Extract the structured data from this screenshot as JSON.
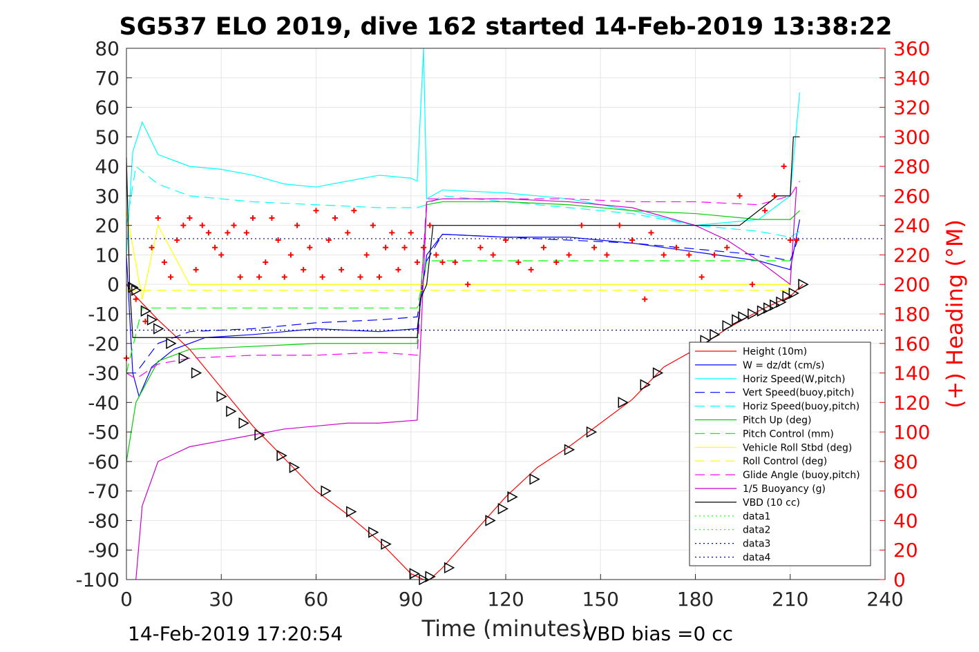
{
  "chart_data": {
    "type": "line",
    "title": "SG537 ELO 2019, dive 162 started 14-Feb-2019 13:38:22",
    "xlabel": "Time (minutes)",
    "ylabel_left": "",
    "ylabel_right": "(+) Heading (°M)",
    "xlim": [
      0,
      240
    ],
    "ylim_left": [
      -100,
      80
    ],
    "ylim_right": [
      0,
      360
    ],
    "xticks": [
      "0",
      "30",
      "60",
      "90",
      "120",
      "150",
      "180",
      "210",
      "240"
    ],
    "yticks_left": [
      "80",
      "70",
      "60",
      "50",
      "40",
      "30",
      "20",
      "10",
      "0",
      "-10",
      "-20",
      "-30",
      "-40",
      "-50",
      "-60",
      "-70",
      "-80",
      "-90",
      "-100"
    ],
    "yticks_right": [
      "360",
      "340",
      "320",
      "300",
      "280",
      "260",
      "240",
      "220",
      "200",
      "180",
      "160",
      "140",
      "120",
      "100",
      "80",
      "60",
      "40",
      "20",
      "0"
    ],
    "grid": true,
    "legend_position": "lower-right",
    "footer_left": "14-Feb-2019 17:20:54",
    "footer_right": "VBD bias =0 cc",
    "series": [
      {
        "name": "Height (10m)",
        "color": "#ff0000",
        "style": "solid",
        "x": [
          0,
          2,
          10,
          20,
          30,
          40,
          50,
          60,
          70,
          80,
          90,
          94,
          96,
          100,
          110,
          120,
          130,
          140,
          150,
          160,
          170,
          180,
          190,
          200,
          210,
          214
        ],
        "y": [
          0,
          -3,
          -12,
          -22,
          -35,
          -48,
          -59,
          -70,
          -78,
          -87,
          -98,
          -100,
          -100,
          -96,
          -84,
          -72,
          -62,
          -55,
          -47,
          -39,
          -28,
          -22,
          -15,
          -9,
          -4,
          0
        ]
      },
      {
        "name": "W = dz/dt (cm/s)",
        "color": "#0000ff",
        "style": "solid",
        "x": [
          0,
          2,
          4,
          8,
          15,
          25,
          40,
          60,
          80,
          92,
          95,
          100,
          120,
          140,
          160,
          180,
          200,
          210,
          213
        ],
        "y": [
          10,
          -30,
          -38,
          -28,
          -22,
          -18,
          -17,
          -15,
          -16,
          -15,
          10,
          17,
          16,
          16,
          14,
          11,
          8,
          5,
          22
        ]
      },
      {
        "name": "Horiz Speed(W,pitch)",
        "color": "#00ffff",
        "style": "solid",
        "x": [
          0,
          2,
          5,
          10,
          20,
          30,
          40,
          50,
          60,
          70,
          80,
          90,
          92,
          94,
          95,
          100,
          120,
          140,
          160,
          180,
          190,
          200,
          210,
          213
        ],
        "y": [
          10,
          45,
          55,
          44,
          40,
          39,
          37,
          34,
          33,
          35,
          37,
          36,
          35,
          80,
          29,
          32,
          31,
          29,
          25,
          20,
          21,
          22,
          30,
          65
        ]
      },
      {
        "name": "Vert Speed(buoy,pitch)",
        "color": "#0000ff",
        "style": "dashed",
        "x": [
          0,
          3,
          10,
          20,
          40,
          60,
          80,
          92,
          95,
          100,
          120,
          140,
          160,
          180,
          200,
          210,
          213
        ],
        "y": [
          -30,
          -30,
          -20,
          -16,
          -15,
          -13,
          -12,
          -11,
          8,
          17,
          16,
          15,
          14,
          12,
          10,
          8,
          17
        ]
      },
      {
        "name": "Horiz Speed(buoy,pitch)",
        "color": "#00ffff",
        "style": "dashed",
        "x": [
          0,
          3,
          10,
          20,
          40,
          60,
          80,
          92,
          95,
          100,
          120,
          140,
          160,
          180,
          200,
          210,
          213
        ],
        "y": [
          20,
          40,
          34,
          30,
          28,
          27,
          26,
          26,
          27,
          30,
          28,
          26,
          24,
          20,
          18,
          16,
          18
        ]
      },
      {
        "name": "Pitch Up (deg)",
        "color": "#00cc00",
        "style": "solid",
        "x": [
          0,
          3,
          10,
          20,
          40,
          60,
          80,
          92,
          95,
          100,
          120,
          140,
          160,
          180,
          200,
          210,
          213
        ],
        "y": [
          -60,
          -40,
          -26,
          -22,
          -21,
          -20,
          -20,
          -20,
          27,
          28,
          28,
          27,
          25,
          24,
          22,
          22,
          25
        ]
      },
      {
        "name": "Pitch Control (mm)",
        "color": "#00ff00",
        "style": "dashed",
        "x": [
          0,
          5,
          20,
          40,
          60,
          80,
          92,
          95,
          120,
          150,
          180,
          210
        ],
        "y": [
          -30,
          -8,
          -8,
          -8,
          -8,
          -8,
          -8,
          8,
          8,
          8,
          8,
          8
        ]
      },
      {
        "name": "Vehicle Roll Stbd (deg)",
        "color": "#ffff00",
        "style": "solid",
        "x": [
          0,
          5,
          10,
          20,
          30,
          40,
          50,
          60,
          70,
          80,
          90,
          95,
          100,
          120,
          140,
          160,
          180,
          200,
          210
        ],
        "y": [
          25,
          -5,
          20,
          0,
          0,
          0,
          0,
          0,
          0,
          0,
          0,
          0,
          0,
          0,
          0,
          0,
          0,
          0,
          0
        ]
      },
      {
        "name": "Roll Control (deg)",
        "color": "#ffff00",
        "style": "dashed",
        "x": [
          0,
          10,
          30,
          60,
          90,
          95,
          120,
          150,
          180,
          210
        ],
        "y": [
          -2,
          -2,
          -2,
          -2,
          -2,
          -2,
          -2,
          -2,
          -2,
          -2
        ]
      },
      {
        "name": "Glide Angle (buoy,pitch)",
        "color": "#ff00ff",
        "style": "dashed",
        "x": [
          0,
          3,
          10,
          20,
          40,
          60,
          80,
          92,
          95,
          100,
          120,
          140,
          160,
          180,
          200,
          210,
          213
        ],
        "y": [
          -30,
          -32,
          -27,
          -25,
          -24,
          -24,
          -23,
          -24,
          29,
          29,
          29,
          29,
          28,
          28,
          27,
          30,
          35
        ]
      },
      {
        "name": "1/5 Buoyancy (g)",
        "color": "#cc00cc",
        "style": "solid",
        "x": [
          3,
          5,
          10,
          20,
          30,
          40,
          50,
          60,
          70,
          80,
          92,
          95,
          100,
          120,
          140,
          160,
          180,
          190,
          200,
          210,
          212
        ],
        "y": [
          -100,
          -75,
          -60,
          -55,
          -53,
          -51,
          -49,
          -48,
          -47,
          -47,
          -46,
          28,
          29,
          29,
          28,
          26,
          20,
          15,
          8,
          0,
          33
        ]
      },
      {
        "name": "VBD (10 cc)",
        "color": "#000000",
        "style": "solid",
        "x": [
          0,
          1,
          2,
          92,
          93,
          95,
          97,
          100,
          180,
          194,
          200,
          206,
          210,
          211,
          213
        ],
        "y": [
          43,
          0,
          -18,
          -18,
          -5,
          0,
          20,
          20,
          20,
          20,
          25,
          30,
          30,
          50,
          50
        ]
      },
      {
        "name": "data1",
        "color": "#00ff00",
        "style": "dotted",
        "x": [],
        "y": []
      },
      {
        "name": "data2",
        "color": "#00ff00",
        "style": "dotted",
        "x": [],
        "y": []
      },
      {
        "name": "data3",
        "color": "#000080",
        "style": "dotted",
        "x": [
          0,
          240
        ],
        "y": [
          15.5,
          15.5
        ]
      },
      {
        "name": "data4",
        "color": "#000080",
        "style": "dotted",
        "x": [
          0,
          240
        ],
        "y": [
          -15.5,
          -15.5
        ]
      }
    ],
    "heading": {
      "color": "#ff0000",
      "marker": "+",
      "axis": "right",
      "x": [
        0,
        3,
        6,
        8,
        10,
        12,
        14,
        16,
        18,
        20,
        22,
        24,
        26,
        28,
        30,
        32,
        34,
        36,
        38,
        40,
        42,
        44,
        46,
        48,
        50,
        52,
        54,
        56,
        58,
        60,
        62,
        64,
        66,
        68,
        70,
        72,
        74,
        76,
        78,
        80,
        82,
        84,
        86,
        88,
        90,
        92,
        94,
        96,
        98,
        100,
        104,
        108,
        112,
        116,
        120,
        124,
        128,
        132,
        136,
        140,
        144,
        148,
        152,
        156,
        160,
        164,
        166,
        170,
        174,
        178,
        182,
        186,
        190,
        194,
        198,
        202,
        205,
        208,
        210,
        212
      ],
      "y": [
        150,
        190,
        175,
        225,
        245,
        215,
        205,
        230,
        240,
        245,
        210,
        240,
        235,
        225,
        220,
        235,
        240,
        205,
        235,
        245,
        205,
        215,
        245,
        230,
        205,
        220,
        240,
        210,
        225,
        250,
        205,
        230,
        245,
        210,
        235,
        250,
        205,
        220,
        240,
        205,
        225,
        235,
        210,
        225,
        235,
        215,
        225,
        240,
        220,
        215,
        215,
        200,
        225,
        220,
        230,
        215,
        210,
        225,
        215,
        220,
        240,
        225,
        220,
        240,
        230,
        190,
        235,
        220,
        225,
        220,
        205,
        220,
        225,
        260,
        200,
        250,
        260,
        280,
        230,
        230
      ]
    },
    "depth_markers": {
      "color": "#000000",
      "x": [
        2,
        3,
        6,
        8,
        10,
        14,
        18,
        22,
        30,
        33,
        37,
        42,
        49,
        53,
        63,
        71,
        78,
        82,
        91,
        94,
        96,
        102,
        115,
        119,
        122,
        129,
        140,
        147,
        157,
        164,
        168,
        183,
        186,
        190,
        193,
        195,
        198,
        201,
        203,
        205,
        207,
        209,
        211,
        214
      ],
      "y": [
        -1,
        -2,
        -9,
        -12,
        -15,
        -20,
        -25,
        -30,
        -38,
        -43,
        -47,
        -51,
        -58,
        -62,
        -70,
        -77,
        -84,
        -88,
        -98,
        -100,
        -99,
        -96,
        -80,
        -76,
        -72,
        -66,
        -56,
        -50,
        -40,
        -34,
        -30,
        -19,
        -17,
        -14,
        -12,
        -11,
        -10,
        -9,
        -8,
        -7,
        -6,
        -4,
        -3,
        0
      ]
    }
  }
}
